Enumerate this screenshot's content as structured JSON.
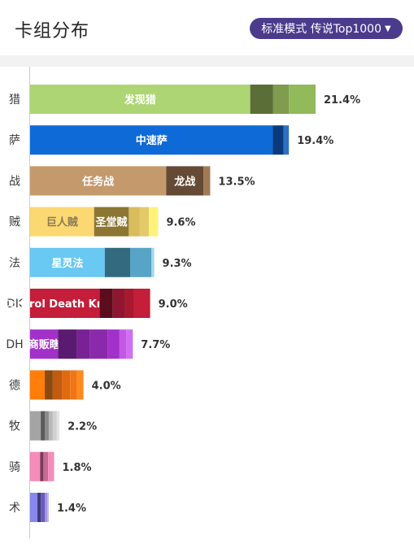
{
  "header": {
    "title": "卡组分布",
    "mode_label": "标准模式 传说Top1000",
    "accent": "#4a3b8c"
  },
  "chart_data": {
    "type": "bar",
    "orientation": "horizontal",
    "stacked": true,
    "categories": [
      "猎",
      "萨",
      "战",
      "贼",
      "法",
      "DK",
      "DH",
      "德",
      "牧",
      "骑",
      "术"
    ],
    "category_tick_labels": [
      "猎",
      "萨",
      "战",
      "贼",
      "法",
      "DK",
      "DH",
      "德",
      "牧",
      "骑",
      "术"
    ],
    "values": [
      21.4,
      19.4,
      13.5,
      9.6,
      9.3,
      9.0,
      7.7,
      4.0,
      2.2,
      1.8,
      1.4
    ],
    "value_labels": [
      "21.4%",
      "19.4%",
      "13.5%",
      "9.6%",
      "9.3%",
      "9.0%",
      "7.7%",
      "4.0%",
      "2.2%",
      "1.8%",
      "1.4%"
    ],
    "xlim": [
      0,
      21.4
    ],
    "grid": false,
    "bars": [
      {
        "segments": [
          {
            "value": 16.5,
            "color": "#aed574",
            "label": "发现猎",
            "text_color": "#ffffff"
          },
          {
            "value": 1.7,
            "color": "#5b6e37"
          },
          {
            "value": 1.2,
            "color": "#7f9c4f"
          },
          {
            "value": 2.0,
            "color": "#92b95a"
          }
        ]
      },
      {
        "segments": [
          {
            "value": 18.2,
            "color": "#0e6ad6",
            "label": "中速萨",
            "text_color": "#ffffff"
          },
          {
            "value": 0.8,
            "color": "#0a3a7c"
          },
          {
            "value": 0.4,
            "color": "#2f6fc0"
          }
        ]
      },
      {
        "segments": [
          {
            "value": 10.2,
            "color": "#c49a6c",
            "label": "任务战",
            "text_color": "#ffffff"
          },
          {
            "value": 2.8,
            "color": "#654a35",
            "label": "龙战",
            "text_color": "#ffffff"
          },
          {
            "value": 0.5,
            "color": "#a07a52"
          }
        ]
      },
      {
        "segments": [
          {
            "value": 4.8,
            "color": "#fcd872",
            "label": "巨人贼",
            "text_color": "#8a7a55"
          },
          {
            "value": 2.6,
            "color": "#8c7633",
            "label": "圣堂贼",
            "text_color": "#ffffff"
          },
          {
            "value": 0.8,
            "color": "#d9bc5c"
          },
          {
            "value": 0.7,
            "color": "#e3c96a"
          },
          {
            "value": 0.7,
            "color": "#fff27a"
          }
        ]
      },
      {
        "segments": [
          {
            "value": 5.6,
            "color": "#69c9f2",
            "label": "星灵法",
            "text_color": "#ffffff"
          },
          {
            "value": 1.9,
            "color": "#336a7f"
          },
          {
            "value": 1.6,
            "color": "#58a4c6"
          },
          {
            "value": 0.2,
            "color": "#9fd8f0"
          }
        ]
      },
      {
        "segments": [
          {
            "value": 5.2,
            "color": "#c41e3a",
            "label": "Control Death Knight",
            "text_color": "#ffffff"
          },
          {
            "value": 1.0,
            "color": "#5c0c1c"
          },
          {
            "value": 0.9,
            "color": "#8f1530"
          },
          {
            "value": 0.7,
            "color": "#a8182f"
          },
          {
            "value": 1.2,
            "color": "#c41e3a"
          }
        ]
      },
      {
        "segments": [
          {
            "value": 2.1,
            "color": "#a330c9",
            "label": "商贩瞎",
            "text_color": "#ffffff"
          },
          {
            "value": 1.4,
            "color": "#5a1a70"
          },
          {
            "value": 1.0,
            "color": "#7a2196"
          },
          {
            "value": 1.3,
            "color": "#8a2aab"
          },
          {
            "value": 0.9,
            "color": "#a330c9"
          },
          {
            "value": 0.5,
            "color": "#c358e6"
          },
          {
            "value": 0.5,
            "color": "#d070f0"
          }
        ]
      },
      {
        "segments": [
          {
            "value": 1.1,
            "color": "#ff7d0a"
          },
          {
            "value": 0.6,
            "color": "#8a4a10"
          },
          {
            "value": 0.7,
            "color": "#c25a10"
          },
          {
            "value": 0.6,
            "color": "#e06a10"
          },
          {
            "value": 0.5,
            "color": "#f07515"
          },
          {
            "value": 0.5,
            "color": "#ff8a20"
          }
        ]
      },
      {
        "segments": [
          {
            "value": 0.8,
            "color": "#a4a4a4"
          },
          {
            "value": 0.3,
            "color": "#5a5a5a"
          },
          {
            "value": 0.3,
            "color": "#8a8a8a"
          },
          {
            "value": 0.3,
            "color": "#b8b8b8"
          },
          {
            "value": 0.3,
            "color": "#d0d0d0"
          },
          {
            "value": 0.2,
            "color": "#e4e4e4"
          }
        ]
      },
      {
        "segments": [
          {
            "value": 0.75,
            "color": "#f58cba"
          },
          {
            "value": 0.25,
            "color": "#7a3a5a"
          },
          {
            "value": 0.35,
            "color": "#c56a95"
          },
          {
            "value": 0.45,
            "color": "#f58cba"
          }
        ]
      },
      {
        "segments": [
          {
            "value": 0.55,
            "color": "#8787ed"
          },
          {
            "value": 0.25,
            "color": "#3c3c7a"
          },
          {
            "value": 0.3,
            "color": "#6a5ab8"
          },
          {
            "value": 0.2,
            "color": "#a394e0"
          },
          {
            "value": 0.1,
            "color": "#c4b8f0"
          }
        ]
      }
    ]
  }
}
